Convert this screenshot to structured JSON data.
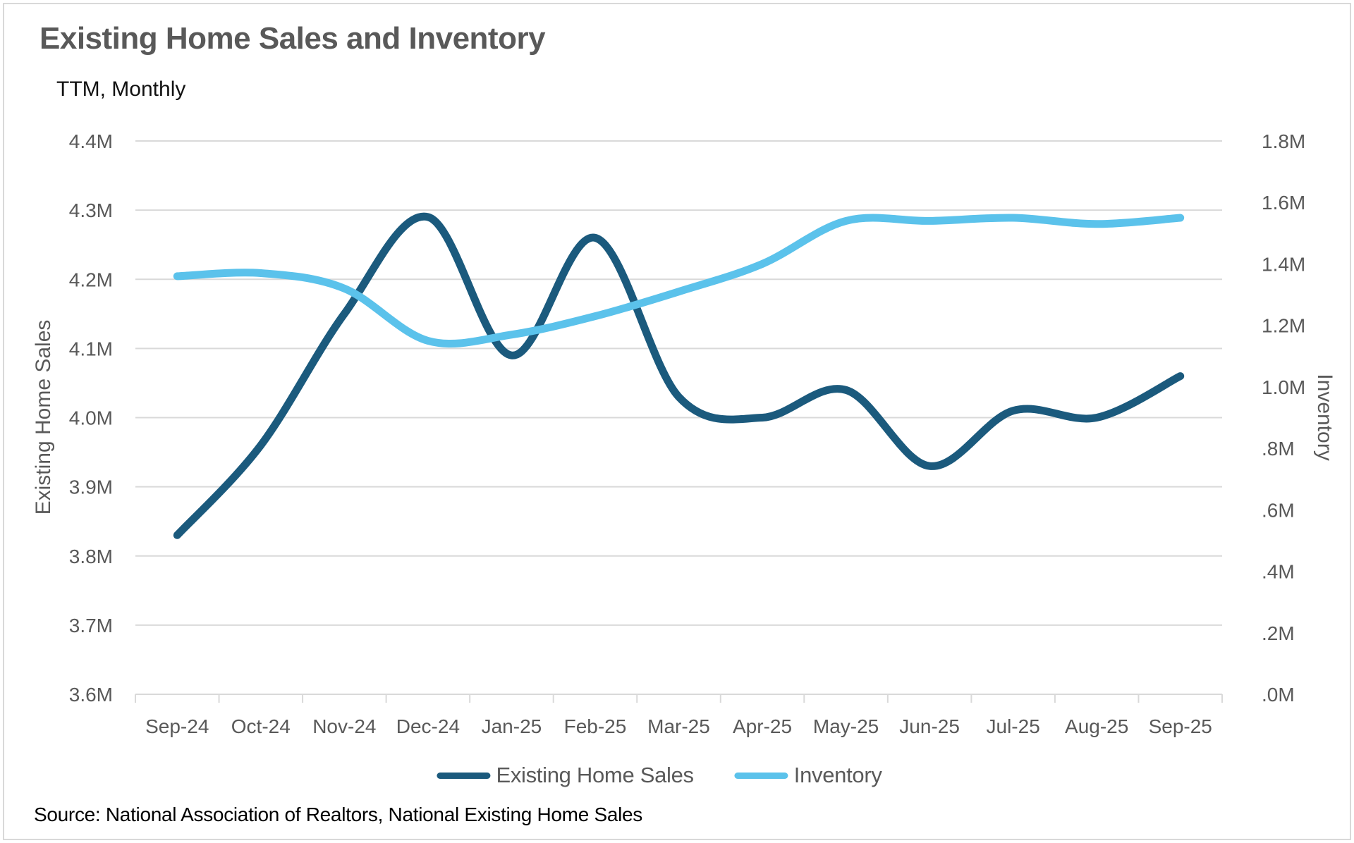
{
  "header": {
    "title": "Existing Home Sales and Inventory",
    "subtitle": "TTM, Monthly"
  },
  "footer": {
    "source": "Source: National Association of Realtors, National Existing Home Sales"
  },
  "colors": {
    "sales_line": "#1b5a7d",
    "inventory_line": "#5bc2eb",
    "gridline": "#d9d9d9",
    "axis_text": "#595959",
    "title_text": "#595959"
  },
  "chart_data": {
    "type": "line",
    "title": "Existing Home Sales and Inventory",
    "subtitle": "TTM, Monthly",
    "smooth": true,
    "grid": true,
    "legend_position": "bottom",
    "categories": [
      "Sep-24",
      "Oct-24",
      "Nov-24",
      "Dec-24",
      "Jan-25",
      "Feb-25",
      "Mar-25",
      "Apr-25",
      "May-25",
      "Jun-25",
      "Jul-25",
      "Aug-25",
      "Sep-25"
    ],
    "series": [
      {
        "name": "Existing Home Sales",
        "axis": "left",
        "color": "#1b5a7d",
        "values": [
          3.83,
          3.96,
          4.15,
          4.29,
          4.09,
          4.26,
          4.03,
          4.0,
          4.04,
          3.93,
          4.01,
          4.0,
          4.06
        ]
      },
      {
        "name": "Inventory",
        "axis": "right",
        "color": "#5bc2eb",
        "values": [
          1.36,
          1.37,
          1.32,
          1.15,
          1.17,
          1.23,
          1.31,
          1.4,
          1.54,
          1.54,
          1.55,
          1.53,
          1.55
        ]
      }
    ],
    "left_axis": {
      "label": "Existing Home Sales",
      "min": 3.6,
      "max": 4.4,
      "step": 0.1,
      "tick_labels": [
        "4.4M",
        "4.3M",
        "4.2M",
        "4.1M",
        "4.0M",
        "3.9M",
        "3.8M",
        "3.7M",
        "3.6M"
      ]
    },
    "right_axis": {
      "label": "Inventory",
      "min": 0.0,
      "max": 1.8,
      "step": 0.2,
      "tick_labels": [
        "1.8M",
        "1.6M",
        "1.4M",
        "1.2M",
        "1.0M",
        ".8M",
        ".6M",
        ".4M",
        ".2M",
        ".0M"
      ]
    }
  },
  "legend": {
    "items": [
      {
        "label": "Existing Home Sales",
        "color": "#1b5a7d"
      },
      {
        "label": "Inventory",
        "color": "#5bc2eb"
      }
    ]
  }
}
